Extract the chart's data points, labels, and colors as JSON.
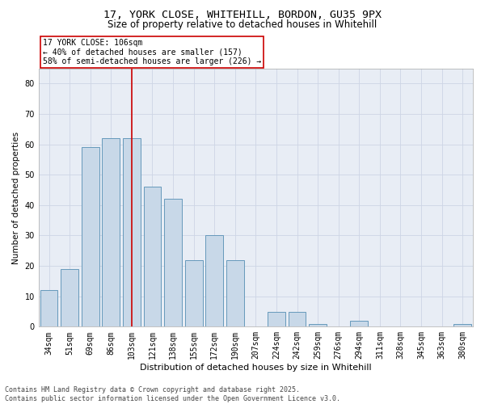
{
  "title1": "17, YORK CLOSE, WHITEHILL, BORDON, GU35 9PX",
  "title2": "Size of property relative to detached houses in Whitehill",
  "xlabel": "Distribution of detached houses by size in Whitehill",
  "ylabel": "Number of detached properties",
  "categories": [
    "34sqm",
    "51sqm",
    "69sqm",
    "86sqm",
    "103sqm",
    "121sqm",
    "138sqm",
    "155sqm",
    "172sqm",
    "190sqm",
    "207sqm",
    "224sqm",
    "242sqm",
    "259sqm",
    "276sqm",
    "294sqm",
    "311sqm",
    "328sqm",
    "345sqm",
    "363sqm",
    "380sqm"
  ],
  "values": [
    12,
    19,
    59,
    62,
    62,
    46,
    42,
    22,
    30,
    22,
    0,
    5,
    5,
    1,
    0,
    2,
    0,
    0,
    0,
    0,
    1
  ],
  "bar_color": "#c8d8e8",
  "bar_edge_color": "#6699bb",
  "red_line_x": 4.0,
  "annotation_text": "17 YORK CLOSE: 106sqm\n← 40% of detached houses are smaller (157)\n58% of semi-detached houses are larger (226) →",
  "annotation_box_color": "#ffffff",
  "annotation_box_edge": "#cc0000",
  "red_line_color": "#cc0000",
  "ylim": [
    0,
    85
  ],
  "yticks": [
    0,
    10,
    20,
    30,
    40,
    50,
    60,
    70,
    80
  ],
  "grid_color": "#cdd5e5",
  "background_color": "#e8edf5",
  "footer_text": "Contains HM Land Registry data © Crown copyright and database right 2025.\nContains public sector information licensed under the Open Government Licence v3.0.",
  "title1_fontsize": 9.5,
  "title2_fontsize": 8.5,
  "xlabel_fontsize": 8,
  "ylabel_fontsize": 7.5,
  "tick_fontsize": 7,
  "annotation_fontsize": 7,
  "footer_fontsize": 6
}
